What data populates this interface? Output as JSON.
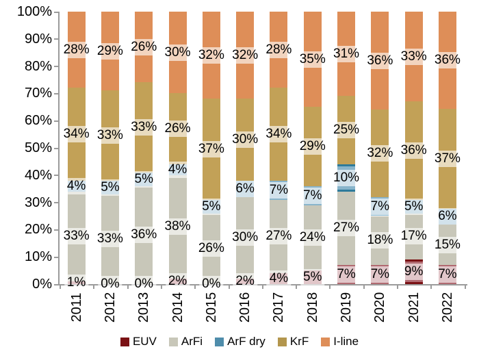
{
  "chart_data": {
    "type": "bar",
    "stacked": true,
    "percent_stacked": true,
    "title": "",
    "xlabel": "",
    "ylabel": "",
    "ylim": [
      0,
      100
    ],
    "grid": false,
    "legend_position": "bottom",
    "data_labels": true,
    "categories": [
      "2011",
      "2012",
      "2013",
      "2014",
      "2015",
      "2016",
      "2017",
      "2018",
      "2019",
      "2020",
      "2021",
      "2022"
    ],
    "series": [
      {
        "name": "EUV",
        "fill": "#b16a71",
        "legend_color": "#7a1114",
        "values": [
          1,
          0,
          0,
          2,
          0,
          2,
          4,
          5,
          7,
          7,
          9,
          7
        ]
      },
      {
        "name": "ArFi",
        "fill": "#c8c7b9",
        "legend_color": "#c8c7b9",
        "values": [
          33,
          33,
          36,
          38,
          26,
          30,
          27,
          24,
          27,
          18,
          17,
          15
        ]
      },
      {
        "name": "ArF dry",
        "fill": "#88b4cb",
        "legend_color": "#4f8dab",
        "values": [
          4,
          5,
          5,
          4,
          5,
          6,
          7,
          7,
          10,
          7,
          5,
          6
        ]
      },
      {
        "name": "KrF",
        "fill": "#c2a157",
        "legend_color": "#b3964d",
        "values": [
          34,
          33,
          33,
          26,
          37,
          30,
          34,
          29,
          25,
          32,
          36,
          37
        ]
      },
      {
        "name": "I-line",
        "fill": "#de8e58",
        "legend_color": "#de8e58",
        "values": [
          28,
          29,
          26,
          30,
          32,
          32,
          28,
          35,
          31,
          36,
          33,
          36
        ]
      }
    ],
    "y_axis_ticks": [
      "0%",
      "10%",
      "20%",
      "30%",
      "40%",
      "50%",
      "60%",
      "70%",
      "80%",
      "90%",
      "100%"
    ],
    "highlighted_segments": [
      {
        "series": "ArF dry",
        "category": "2019",
        "border_color": "#2e7b9b"
      },
      {
        "series": "EUV",
        "category": "2021",
        "border_color": "#7a1114"
      }
    ],
    "label_suffix": "%",
    "axis_color": "#9b9b9b",
    "label_box_color": "rgba(255,255,255,0.62)"
  }
}
